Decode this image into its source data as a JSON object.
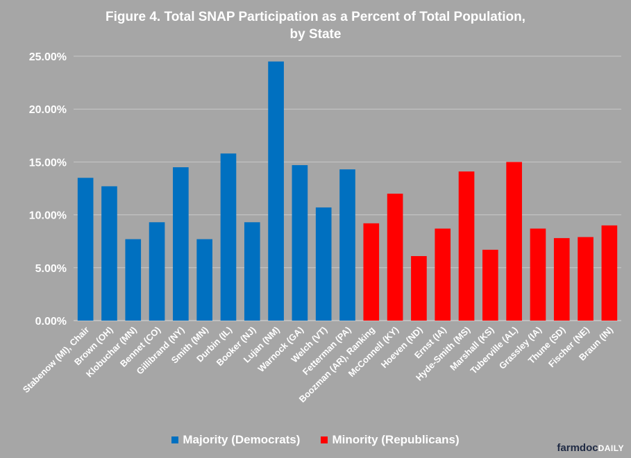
{
  "chart_data": {
    "type": "bar",
    "title": "Figure  4. Total SNAP Participation  as a Percent  of Total Population,\nby State",
    "categories": [
      "Stabenow (MI), Chair",
      "Brown (OH)",
      "Klobuchar (MN)",
      "Bennet (CO)",
      "Gillibrand (NY)",
      "Smith (MN)",
      "Durbin (IL)",
      "Booker (NJ)",
      "Lujan (NM)",
      "Warnock (GA)",
      "Welch (VT)",
      "Fetterman (PA)",
      "Boozman (AR), Ranking",
      "McConnell (KY)",
      "Hoeven (ND)",
      "Ernst (IA)",
      "Hyde-Smith (MS)",
      "Marshall (KS)",
      "Tuberville (AL)",
      "Grassley (IA)",
      "Thune (SD)",
      "Fischer (NE)",
      "Braun (IN)"
    ],
    "values": [
      13.5,
      12.7,
      7.7,
      9.3,
      14.5,
      7.7,
      15.8,
      9.3,
      24.5,
      14.7,
      10.7,
      14.3,
      9.2,
      12.0,
      6.1,
      8.7,
      14.1,
      6.7,
      15.0,
      8.7,
      7.8,
      7.9,
      9.0
    ],
    "groups": [
      0,
      0,
      0,
      0,
      0,
      0,
      0,
      0,
      0,
      0,
      0,
      0,
      1,
      1,
      1,
      1,
      1,
      1,
      1,
      1,
      1,
      1,
      1
    ],
    "series": [
      {
        "name": "Majority (Democrats)",
        "color": "#0070c0"
      },
      {
        "name": "Minority (Republicans)",
        "color": "#ff0000"
      }
    ],
    "yticks": [
      "0.00%",
      "5.00%",
      "10.00%",
      "15.00%",
      "20.00%",
      "25.00%"
    ],
    "ylim": [
      0,
      25
    ],
    "legend": "bottom",
    "grid": true
  },
  "brand": {
    "part1": "farmdoc",
    "part2": "DAILY"
  }
}
